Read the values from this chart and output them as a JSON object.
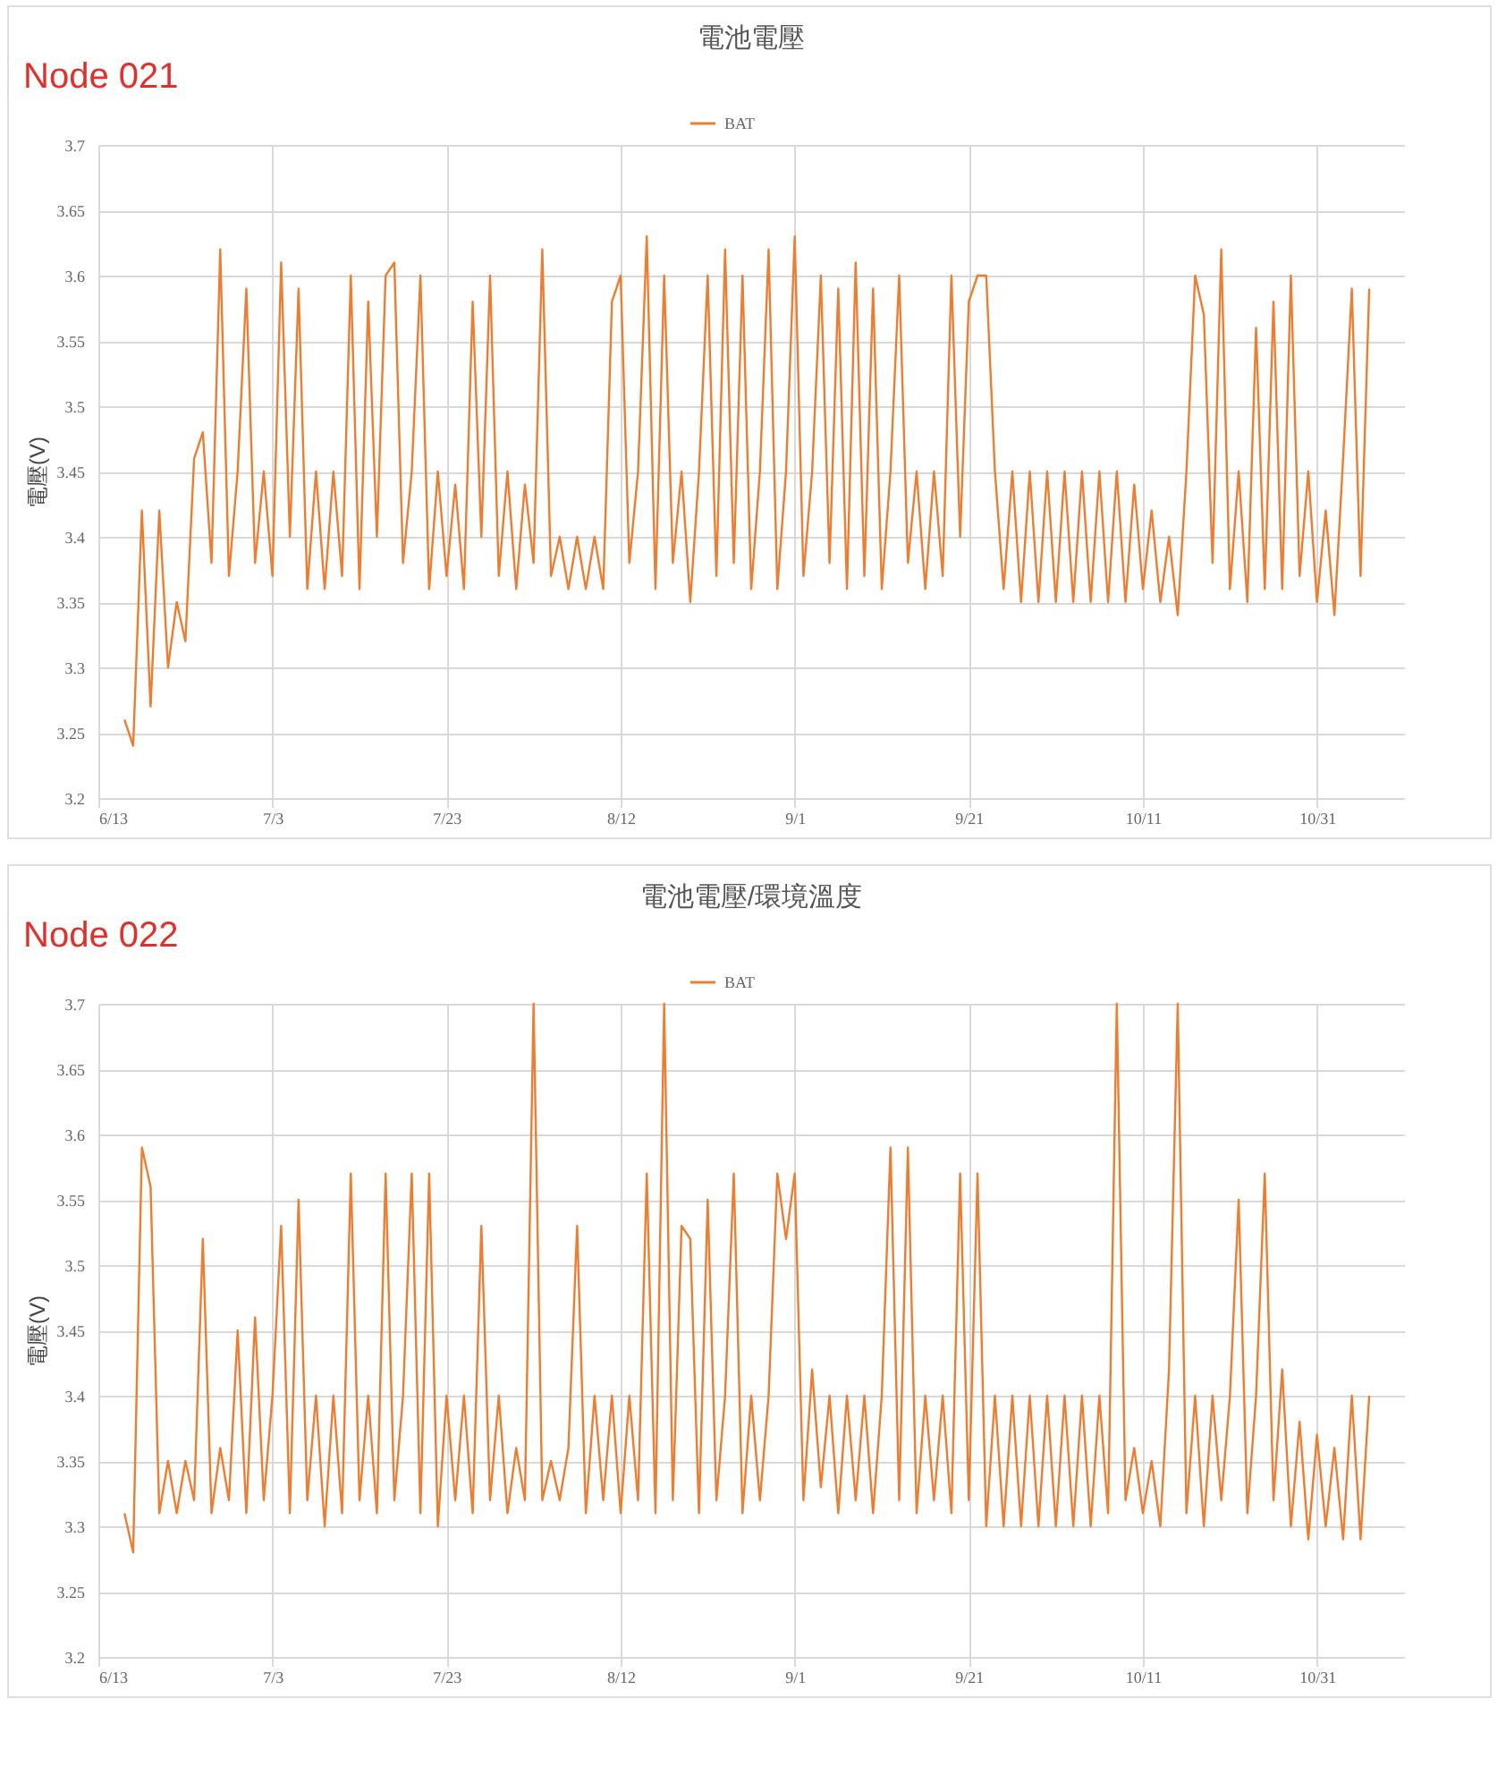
{
  "chart_data": [
    {
      "type": "line",
      "title": "電池電壓",
      "ylabel": "電壓(V)",
      "annotations": [
        "Node 021"
      ],
      "legend": "top",
      "grid": true,
      "marker": "none",
      "line_style": "solid",
      "xlim": [
        "--06-13",
        "--11-10"
      ],
      "ylim": [
        3.2,
        3.7
      ],
      "xticks": [
        {
          "value": "--06-13",
          "label": "6/13"
        },
        {
          "value": "--07-03",
          "label": "7/3"
        },
        {
          "value": "--07-23",
          "label": "7/23"
        },
        {
          "value": "--08-12",
          "label": "8/12"
        },
        {
          "value": "--09-01",
          "label": "9/1"
        },
        {
          "value": "--09-21",
          "label": "9/21"
        },
        {
          "value": "--10-11",
          "label": "10/11"
        },
        {
          "value": "--10-31",
          "label": "10/31"
        }
      ],
      "yticks": [
        3.2,
        3.25,
        3.3,
        3.35,
        3.4,
        3.45,
        3.5,
        3.55,
        3.6,
        3.65,
        3.7
      ],
      "x": [
        "--06-16",
        "--06-17",
        "--06-18",
        "--06-19",
        "--06-20",
        "--06-21",
        "--06-22",
        "--06-23",
        "--06-24",
        "--06-25",
        "--06-26",
        "--06-27",
        "--06-28",
        "--06-29",
        "--06-30",
        "--07-01",
        "--07-02",
        "--07-03",
        "--07-04",
        "--07-05",
        "--07-06",
        "--07-07",
        "--07-08",
        "--07-09",
        "--07-10",
        "--07-11",
        "--07-12",
        "--07-13",
        "--07-14",
        "--07-15",
        "--07-16",
        "--07-17",
        "--07-18",
        "--07-19",
        "--07-20",
        "--07-21",
        "--07-22",
        "--07-23",
        "--07-24",
        "--07-25",
        "--07-26",
        "--07-27",
        "--07-28",
        "--07-29",
        "--07-30",
        "--07-31",
        "--08-01",
        "--08-02",
        "--08-03",
        "--08-04",
        "--08-05",
        "--08-06",
        "--08-07",
        "--08-08",
        "--08-09",
        "--08-10",
        "--08-11",
        "--08-12",
        "--08-13",
        "--08-14",
        "--08-15",
        "--08-16",
        "--08-17",
        "--08-18",
        "--08-19",
        "--08-20",
        "--08-21",
        "--08-22",
        "--08-23",
        "--08-24",
        "--08-25",
        "--08-26",
        "--08-27",
        "--08-28",
        "--08-29",
        "--08-30",
        "--08-31",
        "--09-01",
        "--09-02",
        "--09-03",
        "--09-04",
        "--09-05",
        "--09-06",
        "--09-07",
        "--09-08",
        "--09-09",
        "--09-10",
        "--09-11",
        "--09-12",
        "--09-13",
        "--09-14",
        "--09-15",
        "--09-16",
        "--09-17",
        "--09-18",
        "--09-19",
        "--09-20",
        "--09-21",
        "--09-22",
        "--09-23",
        "--09-24",
        "--09-25",
        "--09-26",
        "--09-27",
        "--09-28",
        "--09-29",
        "--09-30",
        "--10-01",
        "--10-02",
        "--10-03",
        "--10-04",
        "--10-05",
        "--10-06",
        "--10-07",
        "--10-08",
        "--10-09",
        "--10-10",
        "--10-11",
        "--10-12",
        "--10-13",
        "--10-14",
        "--10-15",
        "--10-16",
        "--10-17",
        "--10-18",
        "--10-19",
        "--10-20",
        "--10-21",
        "--10-22",
        "--10-23",
        "--10-24",
        "--10-25",
        "--10-26",
        "--10-27",
        "--10-28",
        "--10-29",
        "--10-30",
        "--10-31",
        "--11-01",
        "--11-02",
        "--11-03",
        "--11-04",
        "--11-05",
        "--11-06"
      ],
      "series": [
        {
          "name": "BAT",
          "color": "#ed7d31",
          "values": [
            3.26,
            3.24,
            3.42,
            3.27,
            3.42,
            3.3,
            3.35,
            3.32,
            3.46,
            3.48,
            3.38,
            3.62,
            3.37,
            3.45,
            3.59,
            3.38,
            3.45,
            3.37,
            3.61,
            3.4,
            3.59,
            3.36,
            3.45,
            3.36,
            3.45,
            3.37,
            3.6,
            3.36,
            3.58,
            3.4,
            3.6,
            3.61,
            3.38,
            3.45,
            3.6,
            3.36,
            3.45,
            3.37,
            3.44,
            3.36,
            3.58,
            3.4,
            3.6,
            3.37,
            3.45,
            3.36,
            3.44,
            3.38,
            3.62,
            3.37,
            3.4,
            3.36,
            3.4,
            3.36,
            3.4,
            3.36,
            3.58,
            3.6,
            3.38,
            3.45,
            3.63,
            3.36,
            3.6,
            3.38,
            3.45,
            3.35,
            3.45,
            3.6,
            3.37,
            3.62,
            3.38,
            3.6,
            3.36,
            3.45,
            3.62,
            3.36,
            3.45,
            3.63,
            3.37,
            3.45,
            3.6,
            3.38,
            3.59,
            3.36,
            3.61,
            3.37,
            3.59,
            3.36,
            3.45,
            3.6,
            3.38,
            3.45,
            3.36,
            3.45,
            3.37,
            3.6,
            3.4,
            3.58,
            3.6,
            3.6,
            3.45,
            3.36,
            3.45,
            3.35,
            3.45,
            3.35,
            3.45,
            3.35,
            3.45,
            3.35,
            3.45,
            3.35,
            3.45,
            3.35,
            3.45,
            3.35,
            3.44,
            3.36,
            3.42,
            3.35,
            3.4,
            3.34,
            3.45,
            3.6,
            3.57,
            3.38,
            3.62,
            3.36,
            3.45,
            3.35,
            3.56,
            3.36,
            3.58,
            3.36,
            3.6,
            3.37,
            3.45,
            3.35,
            3.42,
            3.34,
            3.46,
            3.59,
            3.37,
            3.59
          ]
        }
      ]
    },
    {
      "type": "line",
      "title": "電池電壓/環境溫度",
      "ylabel": "電壓(V)",
      "annotations": [
        "Node 022"
      ],
      "legend": "top",
      "grid": true,
      "marker": "none",
      "line_style": "solid",
      "xlim": [
        "--06-13",
        "--11-10"
      ],
      "ylim": [
        3.2,
        3.7
      ],
      "xticks": [
        {
          "value": "--06-13",
          "label": "6/13"
        },
        {
          "value": "--07-03",
          "label": "7/3"
        },
        {
          "value": "--07-23",
          "label": "7/23"
        },
        {
          "value": "--08-12",
          "label": "8/12"
        },
        {
          "value": "--09-01",
          "label": "9/1"
        },
        {
          "value": "--09-21",
          "label": "9/21"
        },
        {
          "value": "--10-11",
          "label": "10/11"
        },
        {
          "value": "--10-31",
          "label": "10/31"
        }
      ],
      "yticks": [
        3.2,
        3.25,
        3.3,
        3.35,
        3.4,
        3.45,
        3.5,
        3.55,
        3.6,
        3.65,
        3.7
      ],
      "x": [
        "--06-16",
        "--06-17",
        "--06-18",
        "--06-19",
        "--06-20",
        "--06-21",
        "--06-22",
        "--06-23",
        "--06-24",
        "--06-25",
        "--06-26",
        "--06-27",
        "--06-28",
        "--06-29",
        "--06-30",
        "--07-01",
        "--07-02",
        "--07-03",
        "--07-04",
        "--07-05",
        "--07-06",
        "--07-07",
        "--07-08",
        "--07-09",
        "--07-10",
        "--07-11",
        "--07-12",
        "--07-13",
        "--07-14",
        "--07-15",
        "--07-16",
        "--07-17",
        "--07-18",
        "--07-19",
        "--07-20",
        "--07-21",
        "--07-22",
        "--07-23",
        "--07-24",
        "--07-25",
        "--07-26",
        "--07-27",
        "--07-28",
        "--07-29",
        "--07-30",
        "--07-31",
        "--08-01",
        "--08-02",
        "--08-03",
        "--08-04",
        "--08-05",
        "--08-06",
        "--08-07",
        "--08-08",
        "--08-09",
        "--08-10",
        "--08-11",
        "--08-12",
        "--08-13",
        "--08-14",
        "--08-15",
        "--08-16",
        "--08-17",
        "--08-18",
        "--08-19",
        "--08-20",
        "--08-21",
        "--08-22",
        "--08-23",
        "--08-24",
        "--08-25",
        "--08-26",
        "--08-27",
        "--08-28",
        "--08-29",
        "--08-30",
        "--08-31",
        "--09-01",
        "--09-02",
        "--09-03",
        "--09-04",
        "--09-05",
        "--09-06",
        "--09-07",
        "--09-08",
        "--09-09",
        "--09-10",
        "--09-11",
        "--09-12",
        "--09-13",
        "--09-14",
        "--09-15",
        "--09-16",
        "--09-17",
        "--09-18",
        "--09-19",
        "--09-20",
        "--09-21",
        "--09-22",
        "--09-23",
        "--09-24",
        "--09-25",
        "--09-26",
        "--09-27",
        "--09-28",
        "--09-29",
        "--09-30",
        "--10-01",
        "--10-02",
        "--10-03",
        "--10-04",
        "--10-05",
        "--10-06",
        "--10-07",
        "--10-08",
        "--10-09",
        "--10-10",
        "--10-11",
        "--10-12",
        "--10-13",
        "--10-14",
        "--10-15",
        "--10-16",
        "--10-17",
        "--10-18",
        "--10-19",
        "--10-20",
        "--10-21",
        "--10-22",
        "--10-23",
        "--10-24",
        "--10-25",
        "--10-26",
        "--10-27",
        "--10-28",
        "--10-29",
        "--10-30",
        "--10-31",
        "--11-01",
        "--11-02",
        "--11-03",
        "--11-04",
        "--11-05",
        "--11-06"
      ],
      "series": [
        {
          "name": "BAT",
          "color": "#ed7d31",
          "values": [
            3.31,
            3.28,
            3.59,
            3.56,
            3.31,
            3.35,
            3.31,
            3.35,
            3.32,
            3.52,
            3.31,
            3.36,
            3.32,
            3.45,
            3.31,
            3.46,
            3.32,
            3.4,
            3.53,
            3.31,
            3.55,
            3.32,
            3.4,
            3.3,
            3.4,
            3.31,
            3.57,
            3.32,
            3.4,
            3.31,
            3.57,
            3.32,
            3.4,
            3.57,
            3.31,
            3.57,
            3.3,
            3.4,
            3.32,
            3.4,
            3.31,
            3.53,
            3.32,
            3.4,
            3.31,
            3.36,
            3.32,
            3.7,
            3.32,
            3.35,
            3.32,
            3.36,
            3.53,
            3.31,
            3.4,
            3.32,
            3.4,
            3.31,
            3.4,
            3.32,
            3.57,
            3.31,
            3.7,
            3.32,
            3.53,
            3.52,
            3.31,
            3.55,
            3.32,
            3.4,
            3.57,
            3.31,
            3.4,
            3.32,
            3.4,
            3.57,
            3.52,
            3.57,
            3.32,
            3.42,
            3.33,
            3.4,
            3.31,
            3.4,
            3.32,
            3.4,
            3.31,
            3.4,
            3.59,
            3.32,
            3.59,
            3.31,
            3.4,
            3.32,
            3.4,
            3.31,
            3.57,
            3.32,
            3.57,
            3.3,
            3.4,
            3.3,
            3.4,
            3.3,
            3.4,
            3.3,
            3.4,
            3.3,
            3.4,
            3.3,
            3.4,
            3.3,
            3.4,
            3.31,
            3.7,
            3.32,
            3.36,
            3.31,
            3.35,
            3.3,
            3.42,
            3.7,
            3.31,
            3.4,
            3.3,
            3.4,
            3.32,
            3.4,
            3.55,
            3.31,
            3.4,
            3.57,
            3.32,
            3.42,
            3.3,
            3.38,
            3.29,
            3.37,
            3.3,
            3.36,
            3.29,
            3.4,
            3.29,
            3.4
          ]
        }
      ]
    }
  ]
}
